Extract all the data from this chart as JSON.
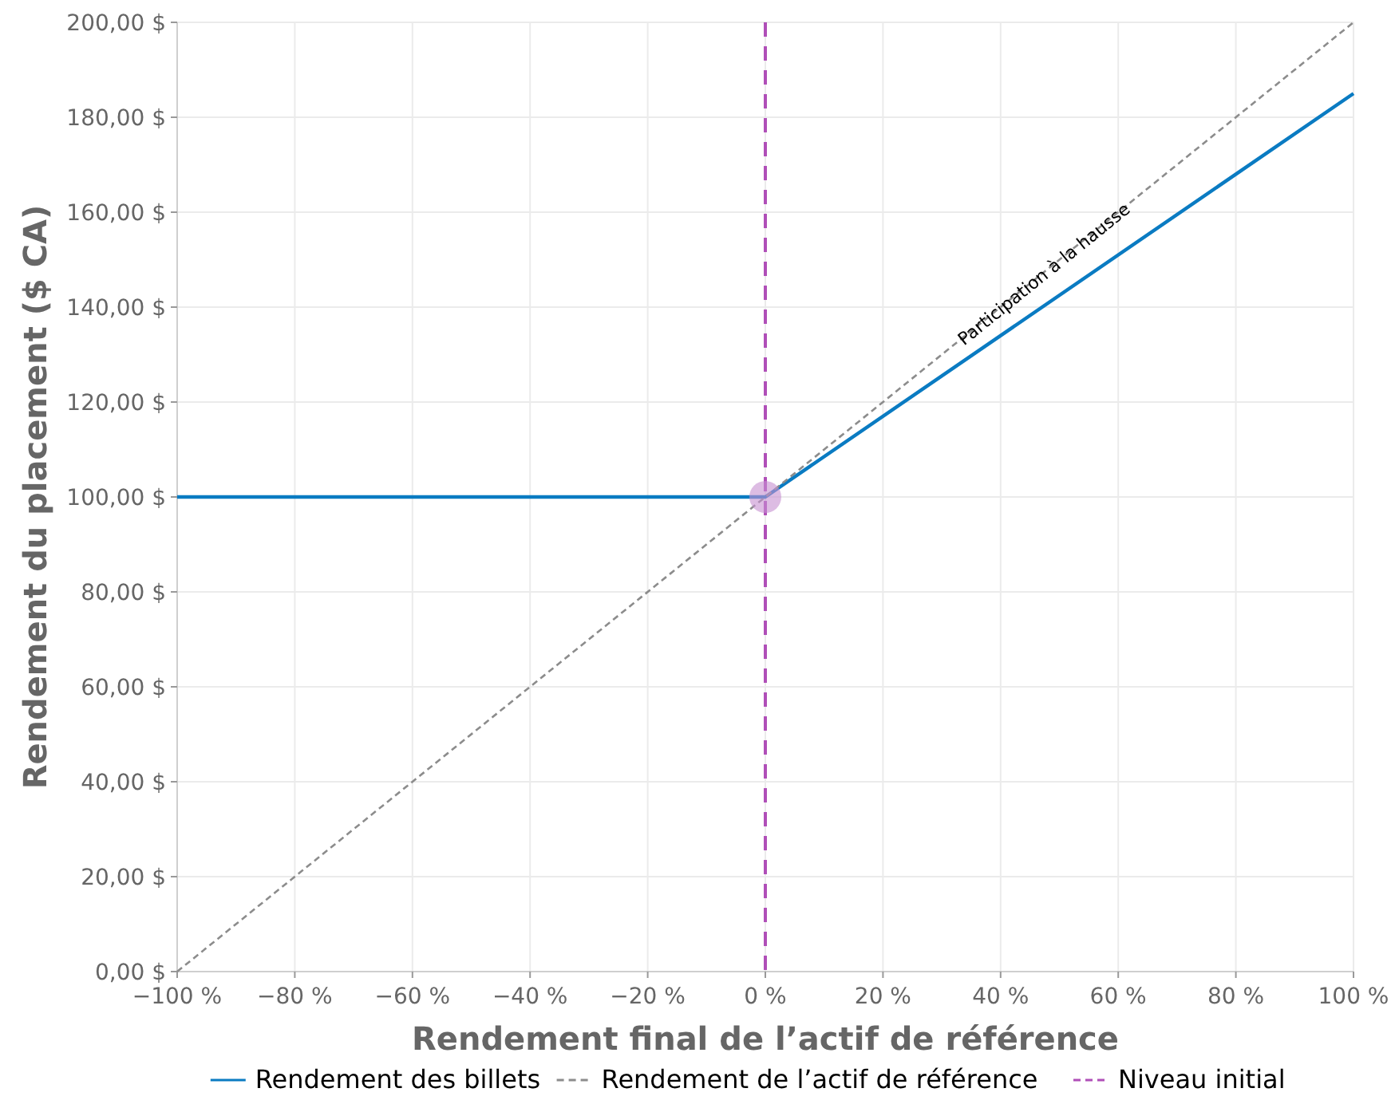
{
  "chart_data": {
    "type": "line",
    "xlabel": "Rendement final de l’actif de référence",
    "ylabel": "Rendement du placement ($ CA)",
    "xlim": [
      -100,
      100
    ],
    "ylim": [
      0,
      200
    ],
    "xticks": [
      {
        "value": -100,
        "label": "−100 %"
      },
      {
        "value": -80,
        "label": "−80 %"
      },
      {
        "value": -60,
        "label": "−60 %"
      },
      {
        "value": -40,
        "label": "−40 %"
      },
      {
        "value": -20,
        "label": "−20 %"
      },
      {
        "value": 0,
        "label": "0 %"
      },
      {
        "value": 20,
        "label": "20 %"
      },
      {
        "value": 40,
        "label": "40 %"
      },
      {
        "value": 60,
        "label": "60 %"
      },
      {
        "value": 80,
        "label": "80 %"
      },
      {
        "value": 100,
        "label": "100 %"
      }
    ],
    "yticks": [
      {
        "value": 0,
        "label": "0,00 $"
      },
      {
        "value": 20,
        "label": "20,00 $"
      },
      {
        "value": 40,
        "label": "40,00 $"
      },
      {
        "value": 60,
        "label": "60,00 $"
      },
      {
        "value": 80,
        "label": "80,00 $"
      },
      {
        "value": 100,
        "label": "100,00 $"
      },
      {
        "value": 120,
        "label": "120,00 $"
      },
      {
        "value": 140,
        "label": "140,00 $"
      },
      {
        "value": 160,
        "label": "160,00 $"
      },
      {
        "value": 180,
        "label": "180,00 $"
      },
      {
        "value": 200,
        "label": "200,00 $"
      }
    ],
    "series": [
      {
        "name": "Rendement des billets",
        "color": "#0a7bc2",
        "x": [
          -100,
          0,
          100
        ],
        "values": [
          100,
          100,
          185
        ],
        "line_style": "solid"
      },
      {
        "name": "Rendement de l’actif de référence",
        "color": "#8c8c8c",
        "x": [
          -100,
          100
        ],
        "values": [
          0,
          200
        ],
        "line_style": "dashed"
      },
      {
        "type": "scatter",
        "color": "#c78fd0",
        "x": [
          0
        ],
        "values": [
          100
        ],
        "marker": "circle"
      }
    ],
    "ref_lines": [
      {
        "axis": "x",
        "value": 0,
        "label": "Niveau initial",
        "color": "#b04fb8",
        "line_style": "dashed"
      }
    ],
    "annotations": [
      {
        "text": "Participation à la hausse",
        "x": 48,
        "y": 146
      }
    ],
    "grid": true,
    "legend": "bottom"
  }
}
